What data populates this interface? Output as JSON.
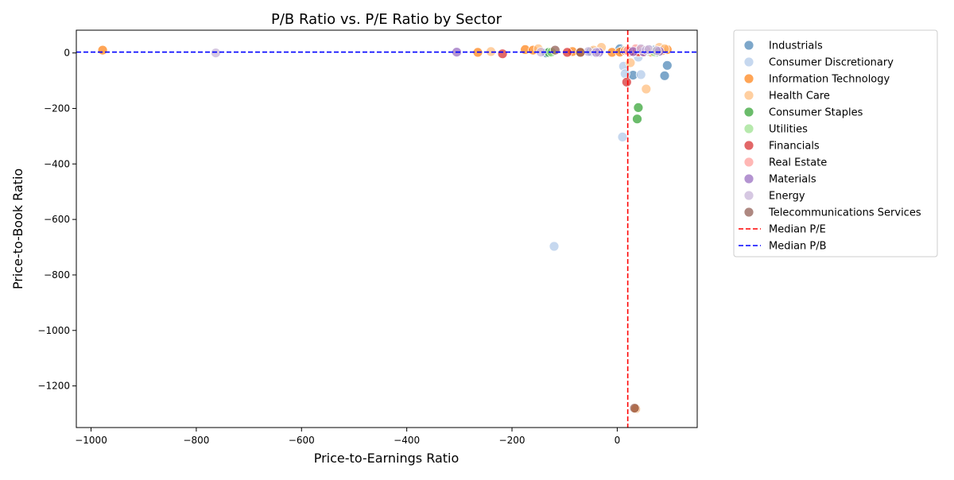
{
  "chart_data": {
    "type": "scatter",
    "title": "P/B Ratio vs. P/E Ratio by Sector",
    "xlabel": "Price-to-Earnings Ratio",
    "ylabel": "Price-to-Book Ratio",
    "xlim": [
      -1028,
      152
    ],
    "ylim": [
      -1350,
      82
    ],
    "xticks": [
      -1000,
      -800,
      -600,
      -400,
      -200,
      0
    ],
    "yticks": [
      -1200,
      -1000,
      -800,
      -600,
      -400,
      -200,
      0
    ],
    "xtick_labels": [
      "−1000",
      "−800",
      "−600",
      "−400",
      "−200",
      "0"
    ],
    "ytick_labels": [
      "−1200",
      "−1000",
      "−800",
      "−600",
      "−400",
      "−200",
      "0"
    ],
    "grid": false,
    "legend_position": "outside right",
    "median_pe": 20,
    "median_pb": 3,
    "median_pe_label": "Median P/E",
    "median_pb_label": "Median P/B",
    "median_pe_color": "#ff0000",
    "median_pb_color": "#0000ff",
    "series": [
      {
        "name": "Industrials",
        "color": "#4682b4",
        "x": [
          -135,
          5,
          30,
          60,
          70,
          40,
          90,
          95,
          25,
          -50,
          10
        ],
        "y": [
          0,
          15,
          -80,
          5,
          10,
          3,
          -82,
          -45,
          2,
          5,
          8
        ]
      },
      {
        "name": "Consumer Discretionary",
        "color": "#aec7e8",
        "x": [
          -120,
          10,
          12,
          15,
          40,
          45,
          35,
          20,
          60
        ],
        "y": [
          -697,
          -303,
          -48,
          -75,
          -15,
          -78,
          5,
          10,
          12
        ]
      },
      {
        "name": "Information Technology",
        "color": "#ff7f0e",
        "x": [
          -978,
          -265,
          -175,
          -160,
          -85,
          -70,
          -10,
          5,
          25,
          45,
          65,
          85,
          95,
          35
        ],
        "y": [
          10,
          2,
          12,
          10,
          5,
          3,
          2,
          3,
          5,
          4,
          3,
          8,
          12,
          -1282
        ]
      },
      {
        "name": "Health Care",
        "color": "#ffbb78",
        "x": [
          -240,
          -150,
          -30,
          -45,
          55,
          25,
          80,
          90,
          15
        ],
        "y": [
          5,
          15,
          20,
          10,
          -130,
          -35,
          20,
          15,
          8
        ]
      },
      {
        "name": "Consumer Staples",
        "color": "#2ca02c",
        "x": [
          40,
          38,
          -130,
          75
        ],
        "y": [
          -197,
          -238,
          2,
          3
        ]
      },
      {
        "name": "Utilities",
        "color": "#98df8a",
        "x": [
          -125,
          30,
          55,
          70
        ],
        "y": [
          3,
          4,
          5,
          4
        ]
      },
      {
        "name": "Financials",
        "color": "#d62728",
        "x": [
          -218,
          18,
          30,
          50,
          40,
          -95,
          25
        ],
        "y": [
          -3,
          -105,
          3,
          2,
          4,
          2,
          5
        ]
      },
      {
        "name": "Real Estate",
        "color": "#ff9896",
        "x": [
          35,
          45,
          55,
          20
        ],
        "y": [
          15,
          12,
          10,
          8
        ]
      },
      {
        "name": "Materials",
        "color": "#9467bd",
        "x": [
          -305,
          -40,
          -35,
          30,
          50,
          80
        ],
        "y": [
          3,
          0,
          2,
          5,
          4,
          6
        ]
      },
      {
        "name": "Energy",
        "color": "#c5b0d5",
        "x": [
          -763,
          -145,
          -55,
          -40,
          45,
          55,
          60,
          75
        ],
        "y": [
          0,
          3,
          5,
          2,
          15,
          10,
          12,
          8
        ]
      },
      {
        "name": "Telecommunications Services",
        "color": "#8c564b",
        "x": [
          -118,
          -70,
          33
        ],
        "y": [
          10,
          2,
          -1280
        ]
      }
    ]
  }
}
